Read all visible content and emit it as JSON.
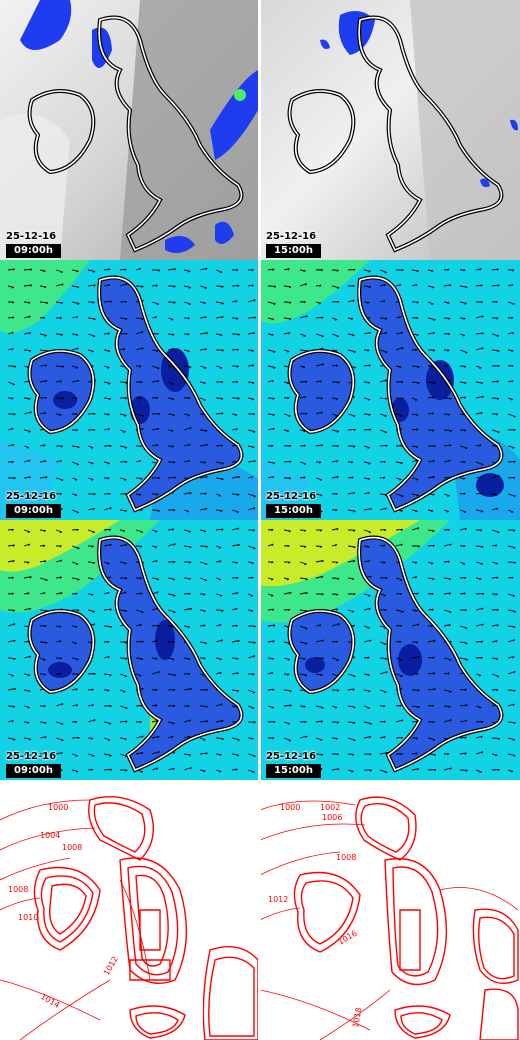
{
  "rows": [
    {
      "name": "cloud-precip",
      "panels": [
        {
          "date": "25-12-16",
          "time": "09:00h"
        },
        {
          "date": "25-12-16",
          "time": "15:00h"
        }
      ]
    },
    {
      "name": "wind-1",
      "panels": [
        {
          "date": "25-12-16",
          "time": "09:00h"
        },
        {
          "date": "25-12-16",
          "time": "15:00h"
        }
      ]
    },
    {
      "name": "wind-2",
      "panels": [
        {
          "date": "25-12-16",
          "time": "09:00h"
        },
        {
          "date": "25-12-16",
          "time": "15:00h"
        }
      ]
    },
    {
      "name": "pressure",
      "panels": [
        {
          "isobars": [
            "1000",
            "1004",
            "1008",
            "1008",
            "1010",
            "1012",
            "1014"
          ]
        },
        {
          "isobars": [
            "1000",
            "1002",
            "1006",
            "1008",
            "1012",
            "1016",
            "1018"
          ]
        }
      ]
    }
  ],
  "colors": {
    "sea_wind": "#0fd6e8",
    "wind_strong": "#3ee88a",
    "wind_stronger": "#c8ec2a",
    "land_wind": "#2452d8",
    "land_wind_dark": "#0a1ea0",
    "cloud_gray": "#9a9a9a",
    "cloud_light": "#e4e4e4",
    "precip_blue": "#1e3cf0",
    "isobar_red": "#ff0000"
  }
}
